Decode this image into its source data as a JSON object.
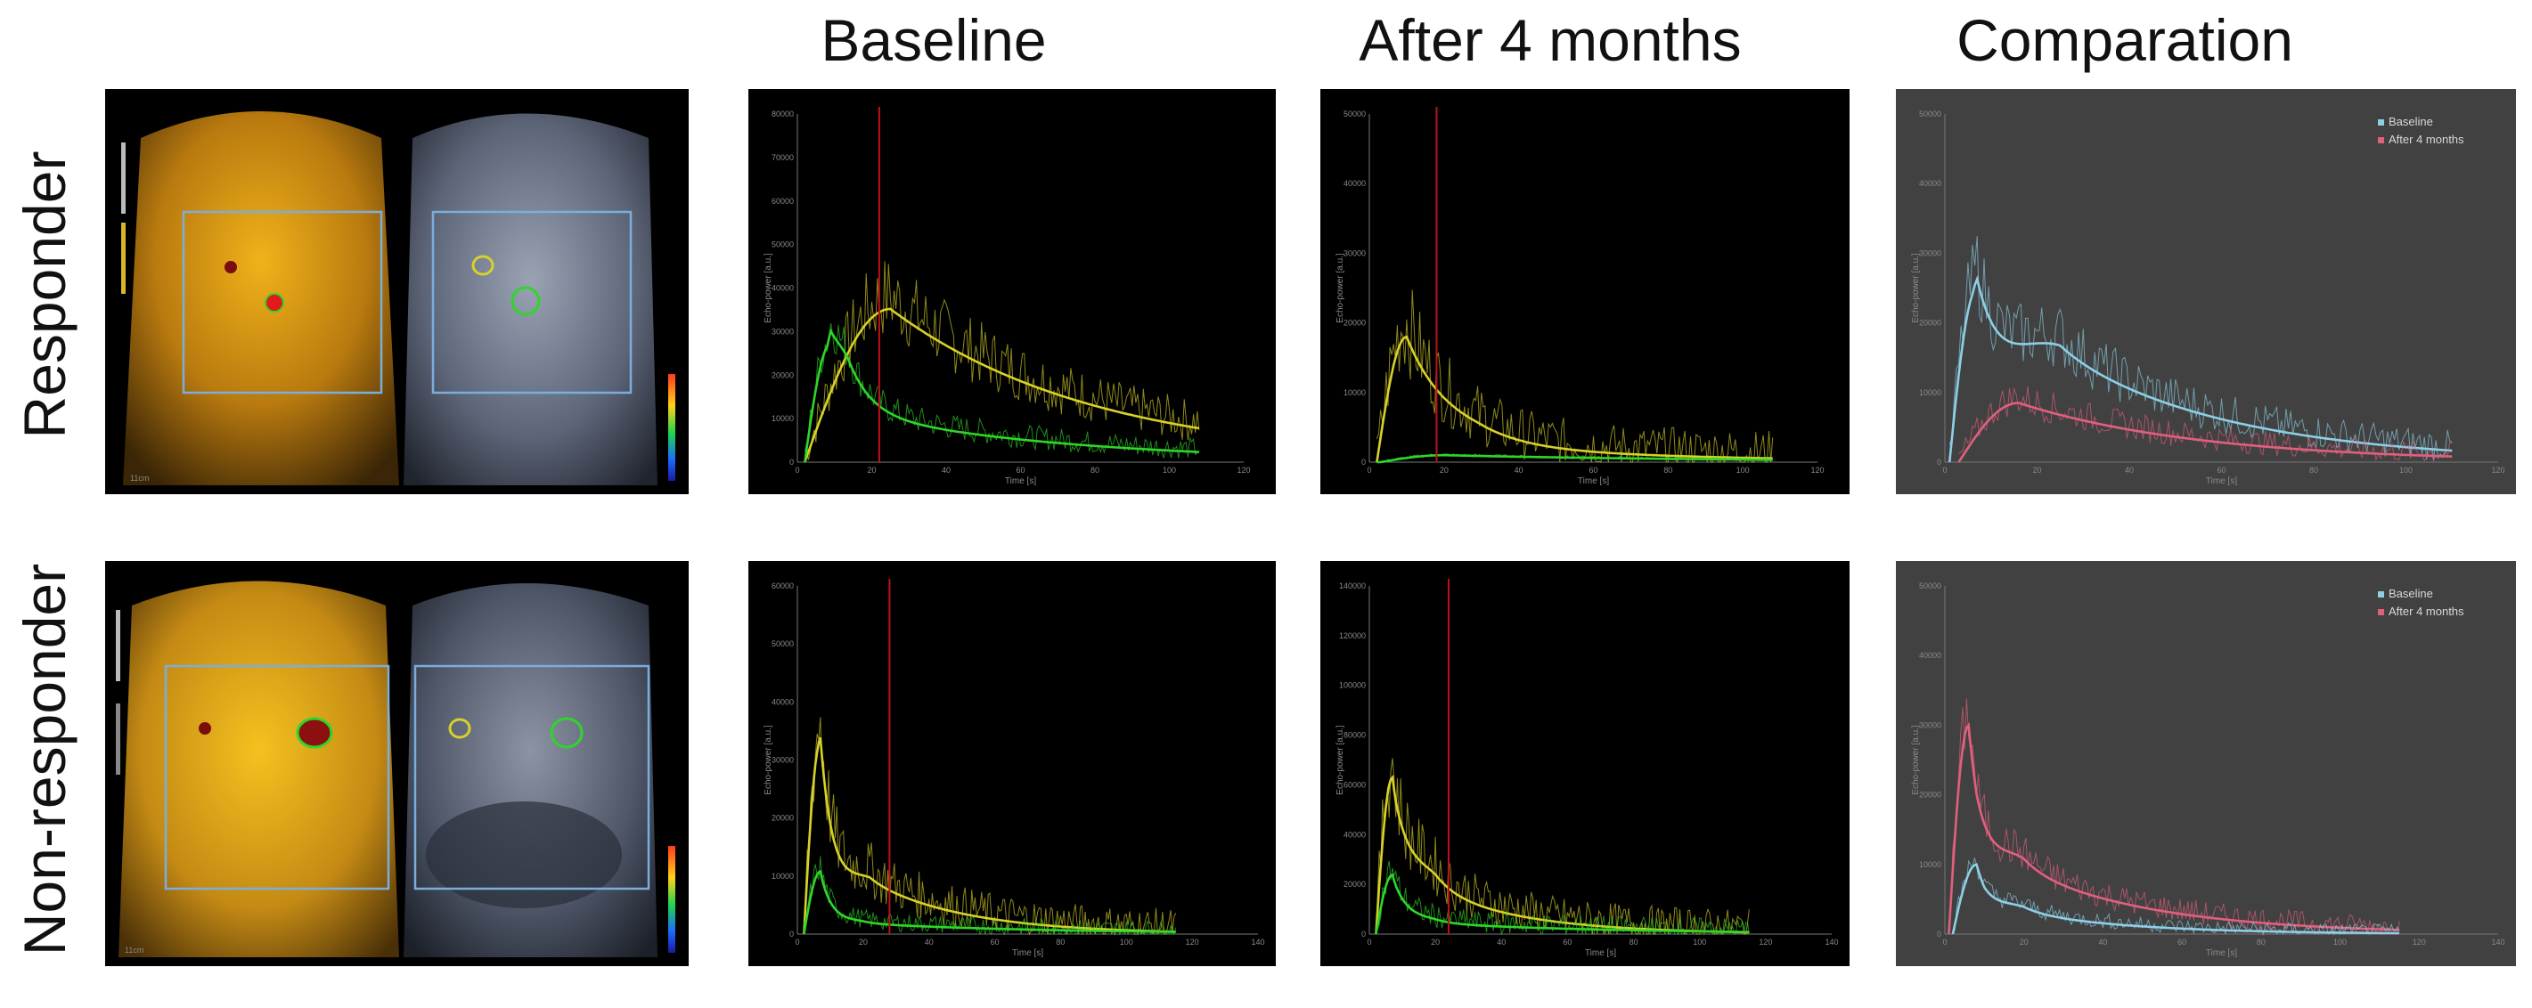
{
  "column_headers": [
    "Baseline",
    "After 4 months",
    "Comparation"
  ],
  "row_headers": [
    "Responder",
    "Non-responder"
  ],
  "colors": {
    "yellow": "#d8d12a",
    "green": "#2fd62a",
    "red_marker": "#c0101a",
    "baseline_blue": "#8ecfe6",
    "after_pink": "#e0607e",
    "roi_box": "#7aaedc"
  },
  "charts": {
    "responder_baseline": {
      "y_ticks": [
        "0",
        "10000",
        "20000",
        "30000",
        "40000",
        "50000",
        "60000",
        "70000",
        "80000"
      ],
      "x_ticks": [
        "0",
        "20",
        "40",
        "60",
        "80",
        "100",
        "120"
      ],
      "xlabel": "Time [s]",
      "ylabel": "Echo-power [a.u.]",
      "marker_x": 22
    },
    "responder_after": {
      "y_ticks": [
        "0",
        "10000",
        "20000",
        "30000",
        "40000",
        "50000"
      ],
      "x_ticks": [
        "0",
        "20",
        "40",
        "60",
        "80",
        "100",
        "120"
      ],
      "xlabel": "Time [s]",
      "ylabel": "Echo-power [a.u.]",
      "marker_x": 18
    },
    "responder_comparation": {
      "y_ticks": [
        "0",
        "10000",
        "20000",
        "30000",
        "40000",
        "50000"
      ],
      "x_ticks": [
        "0",
        "20",
        "40",
        "60",
        "80",
        "100",
        "120"
      ],
      "xlabel": "Time [s]",
      "ylabel": "Echo-power [a.u.]",
      "legend": [
        "Baseline",
        "After 4 months"
      ]
    },
    "nonresponder_baseline": {
      "y_ticks": [
        "0",
        "10000",
        "20000",
        "30000",
        "40000",
        "50000",
        "60000"
      ],
      "x_ticks": [
        "0",
        "20",
        "40",
        "60",
        "80",
        "100",
        "120",
        "140"
      ],
      "xlabel": "Time [s]",
      "ylabel": "Echo-power [a.u.]",
      "marker_x": 28
    },
    "nonresponder_after": {
      "y_ticks": [
        "0",
        "20000",
        "40000",
        "60000",
        "80000",
        "100000",
        "120000",
        "140000"
      ],
      "x_ticks": [
        "0",
        "20",
        "40",
        "60",
        "80",
        "100",
        "120",
        "140"
      ],
      "xlabel": "Time [s]",
      "ylabel": "Echo-power [a.u.]",
      "marker_x": 24
    },
    "nonresponder_comparation": {
      "y_ticks": [
        "0",
        "10000",
        "20000",
        "30000",
        "40000",
        "50000"
      ],
      "x_ticks": [
        "0",
        "20",
        "40",
        "60",
        "80",
        "100",
        "120",
        "140"
      ],
      "xlabel": "Time [s]",
      "ylabel": "Echo-power [a.u.]",
      "legend": [
        "Baseline",
        "After 4 months"
      ]
    }
  },
  "ultrasound": {
    "scale_label": "11cm"
  }
}
